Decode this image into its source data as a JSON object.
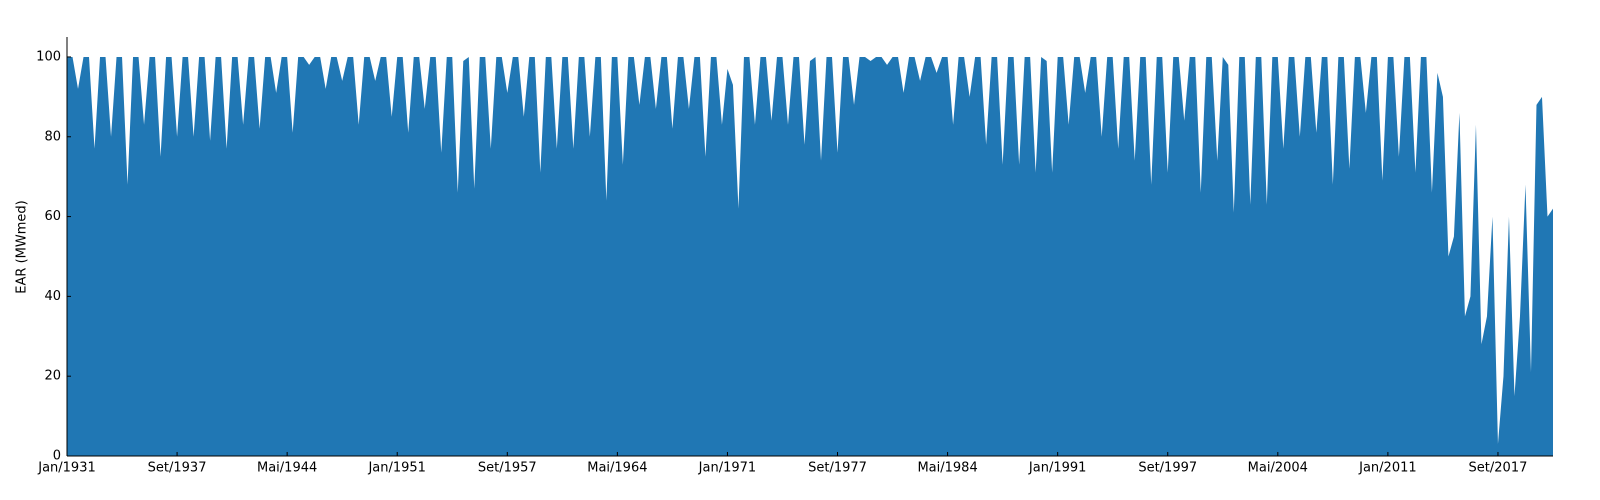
{
  "chart_data": {
    "type": "area",
    "y_label": "EAR (MWmed)",
    "color": "#2077b4",
    "ylim": [
      0,
      105
    ],
    "yticks": [
      0,
      20,
      40,
      60,
      80,
      100
    ],
    "x": [
      "Jan/1931",
      null,
      null,
      null,
      null,
      null,
      null,
      null,
      null,
      null,
      null,
      null,
      null,
      null,
      null,
      null,
      null,
      null,
      null,
      null,
      "Set/1937",
      null,
      null,
      null,
      null,
      null,
      null,
      null,
      null,
      null,
      null,
      null,
      null,
      null,
      null,
      null,
      null,
      null,
      null,
      null,
      "Mai/1944",
      null,
      null,
      null,
      null,
      null,
      null,
      null,
      null,
      null,
      null,
      null,
      null,
      null,
      null,
      null,
      null,
      null,
      null,
      null,
      "Jan/1951",
      null,
      null,
      null,
      null,
      null,
      null,
      null,
      null,
      null,
      null,
      null,
      null,
      null,
      null,
      null,
      null,
      null,
      null,
      null,
      "Set/1957",
      null,
      null,
      null,
      null,
      null,
      null,
      null,
      null,
      null,
      null,
      null,
      null,
      null,
      null,
      null,
      null,
      null,
      null,
      null,
      "Mai/1964",
      null,
      null,
      null,
      null,
      null,
      null,
      null,
      null,
      null,
      null,
      null,
      null,
      null,
      null,
      null,
      null,
      null,
      null,
      null,
      "Jan/1971",
      null,
      null,
      null,
      null,
      null,
      null,
      null,
      null,
      null,
      null,
      null,
      null,
      null,
      null,
      null,
      null,
      null,
      null,
      null,
      "Set/1977",
      null,
      null,
      null,
      null,
      null,
      null,
      null,
      null,
      null,
      null,
      null,
      null,
      null,
      null,
      null,
      null,
      null,
      null,
      null,
      "Mai/1984",
      null,
      null,
      null,
      null,
      null,
      null,
      null,
      null,
      null,
      null,
      null,
      null,
      null,
      null,
      null,
      null,
      null,
      null,
      null,
      "Jan/1991",
      null,
      null,
      null,
      null,
      null,
      null,
      null,
      null,
      null,
      null,
      null,
      null,
      null,
      null,
      null,
      null,
      null,
      null,
      null,
      "Set/1997",
      null,
      null,
      null,
      null,
      null,
      null,
      null,
      null,
      null,
      null,
      null,
      null,
      null,
      null,
      null,
      null,
      null,
      null,
      null,
      "Mai/2004",
      null,
      null,
      null,
      null,
      null,
      null,
      null,
      null,
      null,
      null,
      null,
      null,
      null,
      null,
      null,
      null,
      null,
      null,
      null,
      "Jan/2011",
      null,
      null,
      null,
      null,
      null,
      null,
      null,
      null,
      null,
      null,
      null,
      null,
      null,
      null,
      null,
      null,
      null,
      null,
      null,
      "Set/2017",
      null,
      null,
      null,
      null,
      null,
      null,
      null,
      null,
      null,
      null
    ],
    "values": [
      100,
      100,
      92,
      100,
      100,
      77,
      100,
      100,
      80,
      100,
      100,
      68,
      100,
      100,
      83,
      100,
      100,
      75,
      100,
      100,
      80,
      100,
      100,
      80,
      100,
      100,
      79,
      100,
      100,
      77,
      100,
      100,
      83,
      100,
      100,
      82,
      100,
      100,
      91,
      100,
      100,
      81,
      100,
      100,
      98,
      100,
      100,
      92,
      100,
      100,
      94,
      100,
      100,
      83,
      100,
      100,
      94,
      100,
      100,
      85,
      100,
      100,
      81,
      100,
      100,
      87,
      100,
      100,
      76,
      100,
      100,
      66,
      99,
      100,
      67,
      100,
      100,
      77,
      100,
      100,
      91,
      100,
      100,
      85,
      100,
      100,
      71,
      100,
      100,
      77,
      100,
      100,
      77,
      100,
      100,
      80,
      100,
      100,
      64,
      100,
      100,
      73,
      100,
      100,
      88,
      100,
      100,
      87,
      100,
      100,
      82,
      100,
      100,
      87,
      100,
      100,
      75,
      100,
      100,
      83,
      97,
      93,
      62,
      100,
      100,
      83,
      100,
      100,
      84,
      100,
      100,
      83,
      100,
      100,
      78,
      99,
      100,
      74,
      100,
      100,
      76,
      100,
      100,
      88,
      100,
      100,
      99,
      100,
      100,
      98,
      100,
      100,
      91,
      100,
      100,
      94,
      100,
      100,
      96,
      100,
      100,
      83,
      100,
      100,
      90,
      100,
      100,
      78,
      100,
      100,
      73,
      100,
      100,
      73,
      100,
      100,
      71,
      100,
      99,
      71,
      100,
      100,
      83,
      100,
      100,
      91,
      100,
      100,
      80,
      100,
      100,
      77,
      100,
      100,
      74,
      100,
      100,
      68,
      100,
      100,
      71,
      100,
      100,
      84,
      100,
      100,
      66,
      100,
      100,
      74,
      100,
      98,
      61,
      100,
      100,
      63,
      100,
      100,
      63,
      100,
      100,
      77,
      100,
      100,
      80,
      100,
      100,
      81,
      100,
      100,
      68,
      100,
      100,
      72,
      100,
      100,
      86,
      100,
      100,
      69,
      100,
      100,
      75,
      100,
      100,
      71,
      100,
      100,
      66,
      96,
      90,
      50,
      55,
      86,
      35,
      40,
      83,
      28,
      35,
      60,
      3,
      20,
      60,
      15,
      35,
      68,
      21,
      88,
      90,
      60,
      62
    ]
  }
}
